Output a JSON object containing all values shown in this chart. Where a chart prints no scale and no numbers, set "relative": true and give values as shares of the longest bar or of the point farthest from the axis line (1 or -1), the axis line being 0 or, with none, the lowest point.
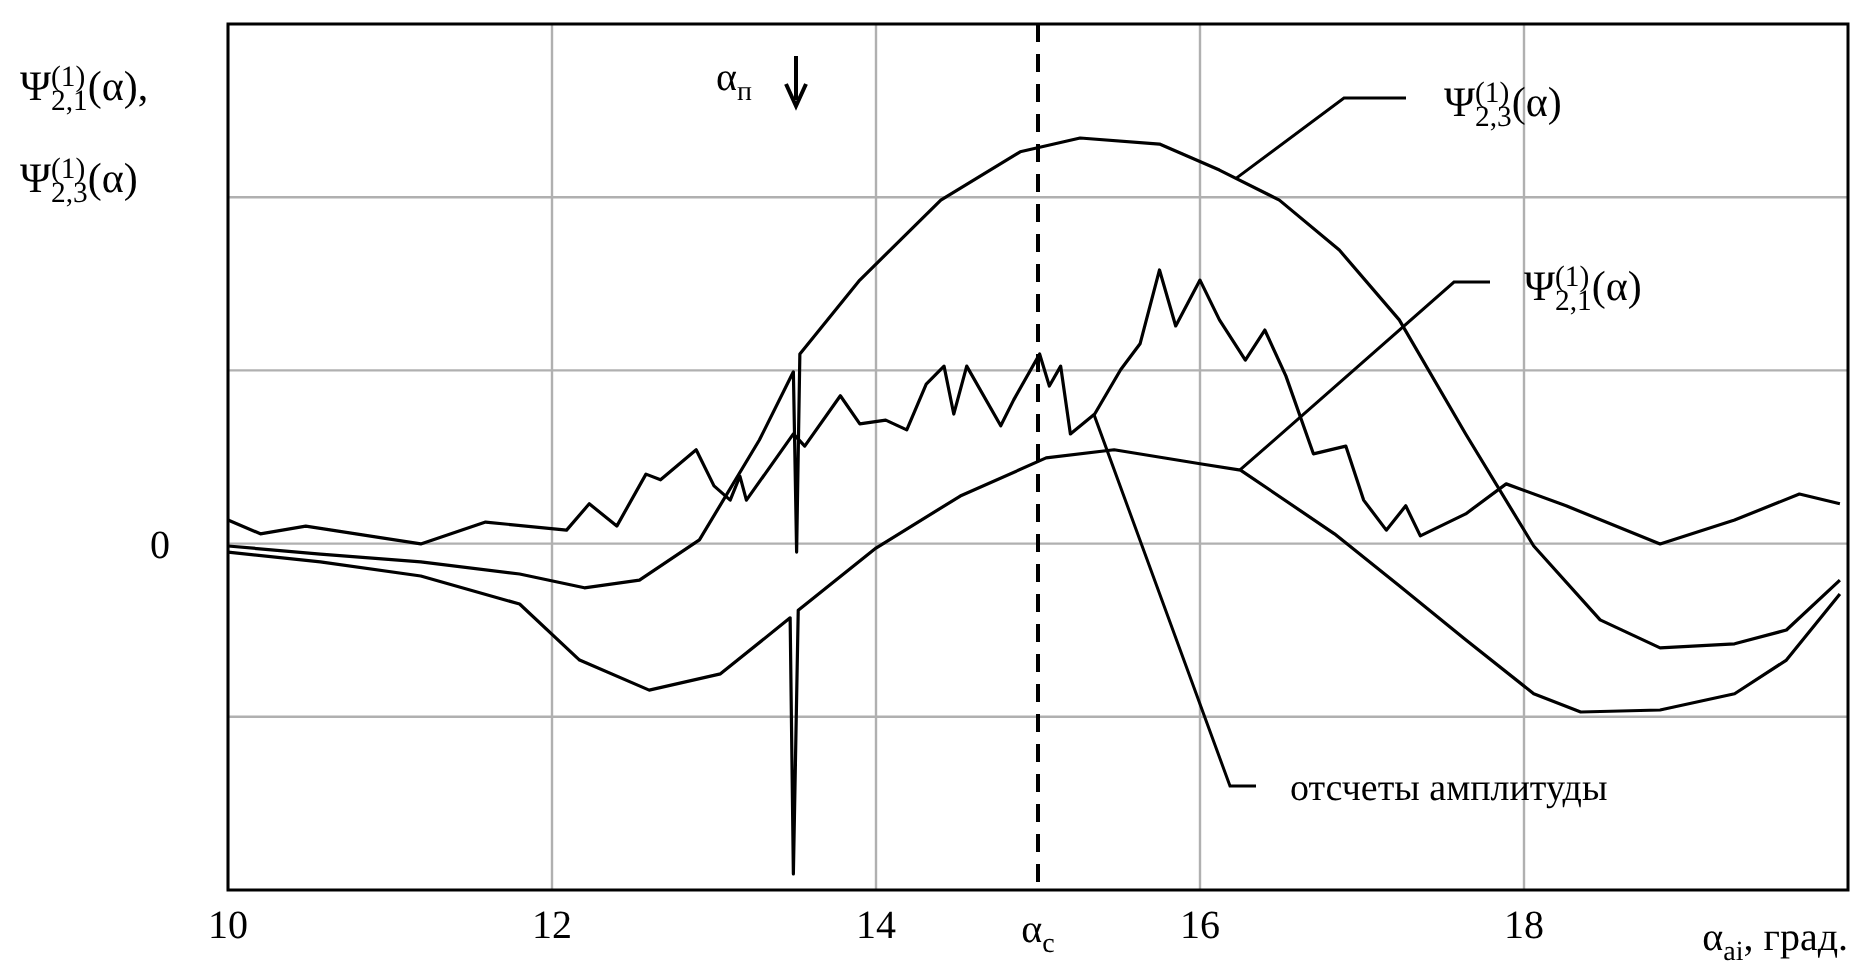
{
  "chart_data": {
    "type": "line",
    "relative": true,
    "xlabel": "α$_{ai}$, град.",
    "ylabel": "Ψ$_{2,1}$$^{(1)}$(α), Ψ$_{2,3}$$^{(1)}$(α)",
    "xlim": [
      10,
      20
    ],
    "xticks": [
      10,
      12,
      14,
      16,
      18
    ],
    "grid": true,
    "marker": "none",
    "line_style": "solid",
    "ref_lines": [
      {
        "axis": "x",
        "value": 15,
        "label": "α$_{c}$",
        "line_style": "dashed",
        "color": "#000000"
      }
    ],
    "annotations": [
      "α$_{п}$",
      "0"
    ],
    "series": [
      {
        "name": "Ψ$_{2,3}$$^{(1)}$(α)",
        "color": "#000000",
        "x": [
          10,
          10.57,
          11.19,
          11.8,
          12.2,
          12.54,
          12.91,
          13.28,
          13.49,
          13.51,
          13.53,
          13.9,
          14.4,
          14.89,
          15.26,
          15.75,
          16.12,
          16.49,
          16.86,
          17.23,
          17.64,
          18.06,
          18.47,
          18.84,
          19.3,
          19.62,
          19.95
        ],
        "values": [
          -0.005,
          -0.025,
          -0.044,
          -0.074,
          -0.108,
          -0.089,
          0.01,
          0.256,
          0.424,
          -0.02,
          0.468,
          0.65,
          0.847,
          0.966,
          1,
          0.985,
          0.921,
          0.847,
          0.724,
          0.552,
          0.271,
          -0.005,
          -0.187,
          -0.256,
          -0.246,
          -0.212,
          -0.089
        ]
      },
      {
        "name": "Ψ$_{2,1}$$^{(1)}$(α)",
        "color": "#000000",
        "x": [
          10,
          10.57,
          11.19,
          11.8,
          12.17,
          12.6,
          13.04,
          13.47,
          13.49,
          13.52,
          14,
          14.52,
          15.05,
          15.47,
          16.01,
          16.25,
          16.83,
          17.23,
          17.64,
          18.06,
          18.35,
          18.84,
          19.3,
          19.62,
          19.95
        ],
        "values": [
          -0.02,
          -0.044,
          -0.079,
          -0.148,
          -0.286,
          -0.36,
          -0.32,
          -0.182,
          -0.813,
          -0.163,
          -0.01,
          0.118,
          0.212,
          0.232,
          0.197,
          0.182,
          0.025,
          -0.103,
          -0.236,
          -0.369,
          -0.414,
          -0.409,
          -0.369,
          -0.286,
          -0.123
        ]
      },
      {
        "name": "отсчеты амплитуды",
        "color": "#000000",
        "x": [
          10,
          10.2,
          10.48,
          11.19,
          11.59,
          12.09,
          12.23,
          12.4,
          12.58,
          12.67,
          12.89,
          13,
          13.1,
          13.16,
          13.2,
          13.49,
          13.56,
          13.78,
          13.9,
          14.06,
          14.19,
          14.31,
          14.42,
          14.48,
          14.56,
          14.77,
          14.85,
          15.01,
          15.07,
          15.14,
          15.2,
          15.35,
          15.51,
          15.63,
          15.75,
          15.85,
          16,
          16.12,
          16.28,
          16.4,
          16.53,
          16.7,
          16.9,
          17.01,
          17.15,
          17.27,
          17.36,
          17.64,
          17.89,
          18.26,
          18.84,
          19.3,
          19.7,
          19.95
        ],
        "values": [
          0.059,
          0.025,
          0.044,
          0,
          0.054,
          0.034,
          0.099,
          0.044,
          0.172,
          0.158,
          0.232,
          0.143,
          0.108,
          0.167,
          0.108,
          0.271,
          0.241,
          0.365,
          0.296,
          0.305,
          0.281,
          0.394,
          0.438,
          0.32,
          0.438,
          0.291,
          0.355,
          0.468,
          0.389,
          0.438,
          0.271,
          0.32,
          0.429,
          0.493,
          0.675,
          0.537,
          0.65,
          0.552,
          0.453,
          0.527,
          0.414,
          0.222,
          0.241,
          0.108,
          0.034,
          0.094,
          0.02,
          0.074,
          0.148,
          0.094,
          0,
          0.059,
          0.123,
          0.099
        ]
      }
    ]
  }
}
